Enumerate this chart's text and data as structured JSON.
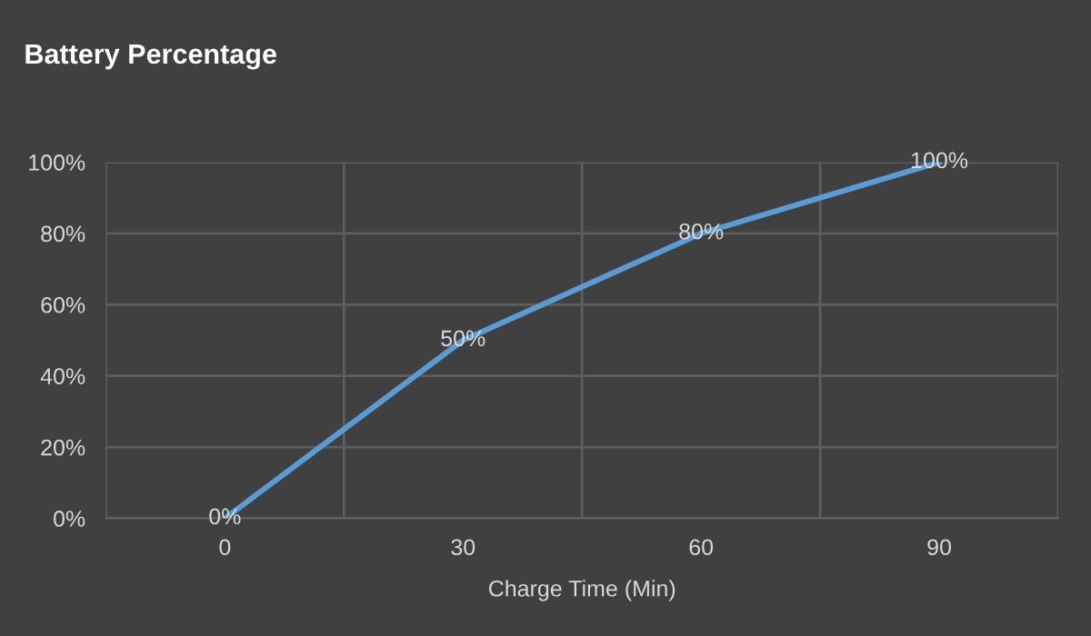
{
  "chart_data": {
    "type": "line",
    "title": "Battery Percentage",
    "xlabel": "Charge Time (Min)",
    "categories": [
      "0",
      "30",
      "60",
      "90"
    ],
    "series": [
      {
        "color": "#5b9bd5",
        "values": [
          0,
          50,
          80,
          100
        ],
        "value_labels": [
          "0%",
          "50%",
          "80%",
          "100%"
        ]
      }
    ],
    "ylim": [
      0,
      100
    ],
    "yticks": [
      {
        "value": 0,
        "label": "0%"
      },
      {
        "value": 20,
        "label": "20%"
      },
      {
        "value": 40,
        "label": "40%"
      },
      {
        "value": 60,
        "label": "60%"
      },
      {
        "value": 80,
        "label": "80%"
      },
      {
        "value": 100,
        "label": "100%"
      }
    ],
    "grid": true,
    "legend": false,
    "marker": "none",
    "line_style": "solid"
  }
}
